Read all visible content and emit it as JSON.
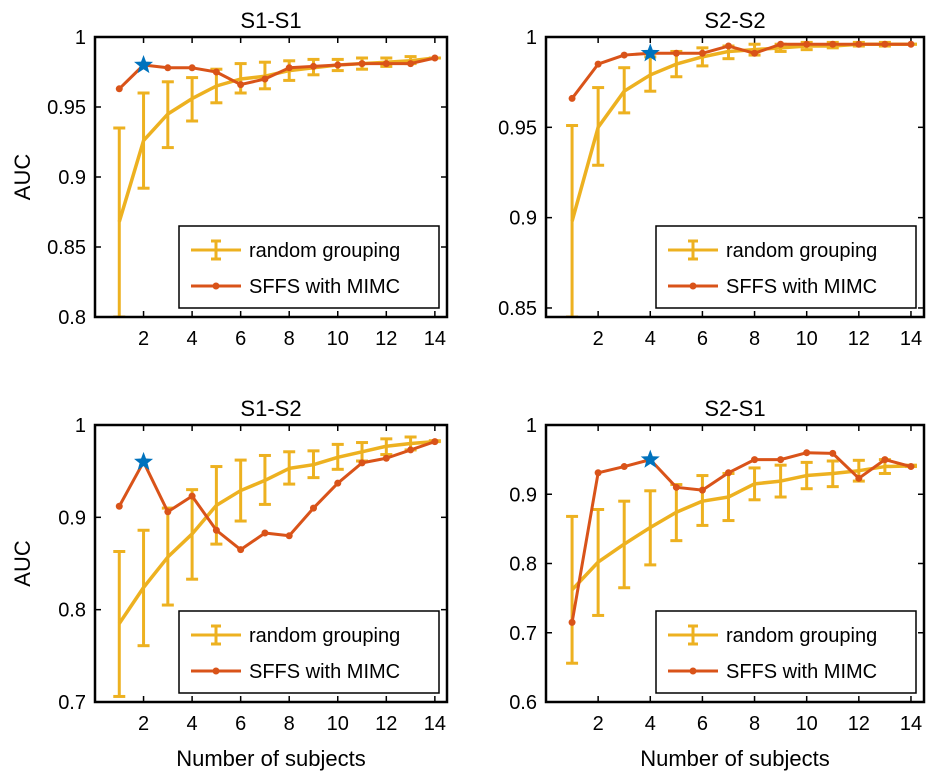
{
  "figure": {
    "common_ylabel": "AUC",
    "common_xlabel": "Number of subjects",
    "colors": {
      "random": "#EDB120",
      "sffs": "#D95319",
      "star": "#0072BD",
      "axis": "#000000"
    }
  },
  "chart_data": [
    {
      "type": "line",
      "title": "S1-S1",
      "xlabel": "",
      "ylabel": "AUC",
      "xlim": [
        0,
        14.5
      ],
      "ylim": [
        0.8,
        1.0
      ],
      "xticks": [
        2,
        4,
        6,
        8,
        10,
        12,
        14
      ],
      "yticks": [
        0.8,
        0.85,
        0.9,
        0.95,
        1.0
      ],
      "ytick_labels": [
        "0.8",
        "0.85",
        "0.9",
        "0.95",
        "1"
      ],
      "legend": "bottom-right",
      "x": [
        1,
        2,
        3,
        4,
        5,
        6,
        7,
        8,
        9,
        10,
        11,
        12,
        13,
        14
      ],
      "series": [
        {
          "name": "random grouping",
          "kind": "errorbar",
          "values": [
            0.868,
            0.926,
            0.945,
            0.956,
            0.965,
            0.97,
            0.972,
            0.976,
            0.978,
            0.98,
            0.981,
            0.982,
            0.983,
            0.985
          ],
          "lower": [
            0.8,
            0.892,
            0.921,
            0.94,
            0.953,
            0.96,
            0.963,
            0.969,
            0.973,
            0.976,
            0.977,
            0.979,
            0.981,
            0.985
          ],
          "upper": [
            0.935,
            0.96,
            0.968,
            0.971,
            0.977,
            0.981,
            0.982,
            0.983,
            0.984,
            0.984,
            0.985,
            0.985,
            0.986,
            0.985
          ]
        },
        {
          "name": "SFFS with MIMC",
          "kind": "line-marker",
          "values": [
            0.963,
            0.98,
            0.978,
            0.978,
            0.975,
            0.966,
            0.97,
            0.978,
            0.979,
            0.98,
            0.981,
            0.981,
            0.981,
            0.985
          ]
        }
      ],
      "star": {
        "x": 2,
        "y": 0.98
      }
    },
    {
      "type": "line",
      "title": "S2-S2",
      "xlabel": "",
      "ylabel": "",
      "xlim": [
        0,
        14.5
      ],
      "ylim": [
        0.845,
        1.0
      ],
      "xticks": [
        2,
        4,
        6,
        8,
        10,
        12,
        14
      ],
      "yticks": [
        0.85,
        0.9,
        0.95,
        1.0
      ],
      "ytick_labels": [
        "0.85",
        "0.9",
        "0.95",
        "1"
      ],
      "legend": "bottom-right",
      "x": [
        1,
        2,
        3,
        4,
        5,
        6,
        7,
        8,
        9,
        10,
        11,
        12,
        13,
        14
      ],
      "series": [
        {
          "name": "random grouping",
          "kind": "errorbar",
          "values": [
            0.898,
            0.95,
            0.97,
            0.979,
            0.985,
            0.989,
            0.992,
            0.993,
            0.994,
            0.995,
            0.995,
            0.996,
            0.996,
            0.996
          ],
          "lower": [
            0.845,
            0.929,
            0.958,
            0.97,
            0.978,
            0.984,
            0.988,
            0.99,
            0.992,
            0.993,
            0.994,
            0.995,
            0.995,
            0.996
          ],
          "upper": [
            0.951,
            0.972,
            0.983,
            0.989,
            0.992,
            0.994,
            0.995,
            0.996,
            0.996,
            0.997,
            0.997,
            0.997,
            0.997,
            0.996
          ]
        },
        {
          "name": "SFFS with MIMC",
          "kind": "line-marker",
          "values": [
            0.966,
            0.985,
            0.99,
            0.991,
            0.991,
            0.991,
            0.995,
            0.991,
            0.996,
            0.996,
            0.996,
            0.996,
            0.996,
            0.996
          ]
        }
      ],
      "star": {
        "x": 4,
        "y": 0.991
      }
    },
    {
      "type": "line",
      "title": "S1-S2",
      "xlabel": "Number of subjects",
      "ylabel": "AUC",
      "xlim": [
        0,
        14.5
      ],
      "ylim": [
        0.7,
        1.0
      ],
      "xticks": [
        2,
        4,
        6,
        8,
        10,
        12,
        14
      ],
      "yticks": [
        0.7,
        0.8,
        0.9,
        1.0
      ],
      "ytick_labels": [
        "0.7",
        "0.8",
        "0.9",
        "1"
      ],
      "legend": "bottom-right",
      "x": [
        1,
        2,
        3,
        4,
        5,
        6,
        7,
        8,
        9,
        10,
        11,
        12,
        13,
        14
      ],
      "series": [
        {
          "name": "random grouping",
          "kind": "errorbar",
          "values": [
            0.785,
            0.824,
            0.857,
            0.882,
            0.913,
            0.929,
            0.94,
            0.953,
            0.957,
            0.965,
            0.971,
            0.977,
            0.98,
            0.982
          ],
          "lower": [
            0.706,
            0.761,
            0.805,
            0.833,
            0.871,
            0.896,
            0.914,
            0.936,
            0.943,
            0.952,
            0.961,
            0.968,
            0.973,
            0.982
          ],
          "upper": [
            0.863,
            0.886,
            0.91,
            0.93,
            0.955,
            0.962,
            0.967,
            0.971,
            0.972,
            0.979,
            0.981,
            0.985,
            0.987,
            0.983
          ]
        },
        {
          "name": "SFFS with MIMC",
          "kind": "line-marker",
          "values": [
            0.912,
            0.96,
            0.906,
            0.923,
            0.886,
            0.865,
            0.883,
            0.88,
            0.91,
            0.937,
            0.959,
            0.964,
            0.973,
            0.982
          ]
        }
      ],
      "star": {
        "x": 2,
        "y": 0.96
      }
    },
    {
      "type": "line",
      "title": "S2-S1",
      "xlabel": "Number of subjects",
      "ylabel": "",
      "xlim": [
        0,
        14.5
      ],
      "ylim": [
        0.6,
        1.0
      ],
      "xticks": [
        2,
        4,
        6,
        8,
        10,
        12,
        14
      ],
      "yticks": [
        0.6,
        0.7,
        0.8,
        0.9,
        1.0
      ],
      "ytick_labels": [
        "0.6",
        "0.7",
        "0.8",
        "0.9",
        "1"
      ],
      "legend": "bottom-right",
      "x": [
        1,
        2,
        3,
        4,
        5,
        6,
        7,
        8,
        9,
        10,
        11,
        12,
        13,
        14
      ],
      "series": [
        {
          "name": "random grouping",
          "kind": "errorbar",
          "values": [
            0.762,
            0.802,
            0.828,
            0.852,
            0.874,
            0.89,
            0.896,
            0.915,
            0.919,
            0.927,
            0.93,
            0.934,
            0.94,
            0.941
          ],
          "lower": [
            0.656,
            0.725,
            0.765,
            0.798,
            0.833,
            0.855,
            0.862,
            0.892,
            0.896,
            0.908,
            0.911,
            0.919,
            0.93,
            0.94
          ],
          "upper": [
            0.868,
            0.878,
            0.89,
            0.905,
            0.914,
            0.927,
            0.93,
            0.938,
            0.942,
            0.946,
            0.948,
            0.949,
            0.95,
            0.942
          ]
        },
        {
          "name": "SFFS with MIMC",
          "kind": "line-marker",
          "values": [
            0.715,
            0.931,
            0.94,
            0.95,
            0.91,
            0.906,
            0.931,
            0.95,
            0.95,
            0.96,
            0.959,
            0.923,
            0.95,
            0.94
          ]
        }
      ],
      "star": {
        "x": 4,
        "y": 0.95
      }
    }
  ]
}
